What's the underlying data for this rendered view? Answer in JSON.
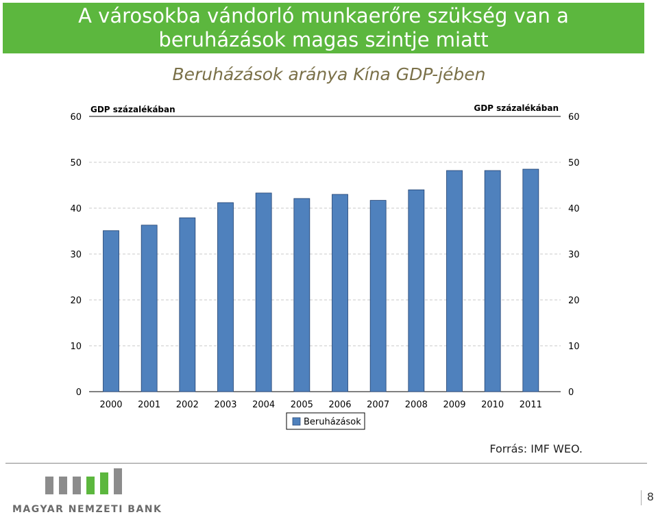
{
  "slide": {
    "title_line1": "A városokba vándorló munkaerőre szükség van a",
    "title_line2": "beruházások magas szintje miatt",
    "source": "Forrás: IMF WEO.",
    "page_number": "8",
    "logo_text": "MAGYAR NEMZETI BANK",
    "colors": {
      "title_bg": "#5cb73e",
      "bar": "#4f81bd",
      "subtitle": "#7a7048"
    }
  },
  "chart_data": {
    "type": "bar",
    "title": "Beruházások aránya Kína GDP-jében",
    "ylabel_left": "GDP százalékában",
    "ylabel_right": "GDP százalékában",
    "categories": [
      "2000",
      "2001",
      "2002",
      "2003",
      "2004",
      "2005",
      "2006",
      "2007",
      "2008",
      "2009",
      "2010",
      "2011"
    ],
    "series": [
      {
        "name": "Beruházások",
        "values": [
          35.1,
          36.3,
          37.9,
          41.2,
          43.3,
          42.1,
          43.0,
          41.7,
          44.0,
          48.2,
          48.2,
          48.5
        ]
      }
    ],
    "ylim": [
      0,
      60
    ],
    "yticks": [
      0,
      10,
      20,
      30,
      40,
      50,
      60
    ],
    "grid": true,
    "legend": "bottom-center"
  }
}
